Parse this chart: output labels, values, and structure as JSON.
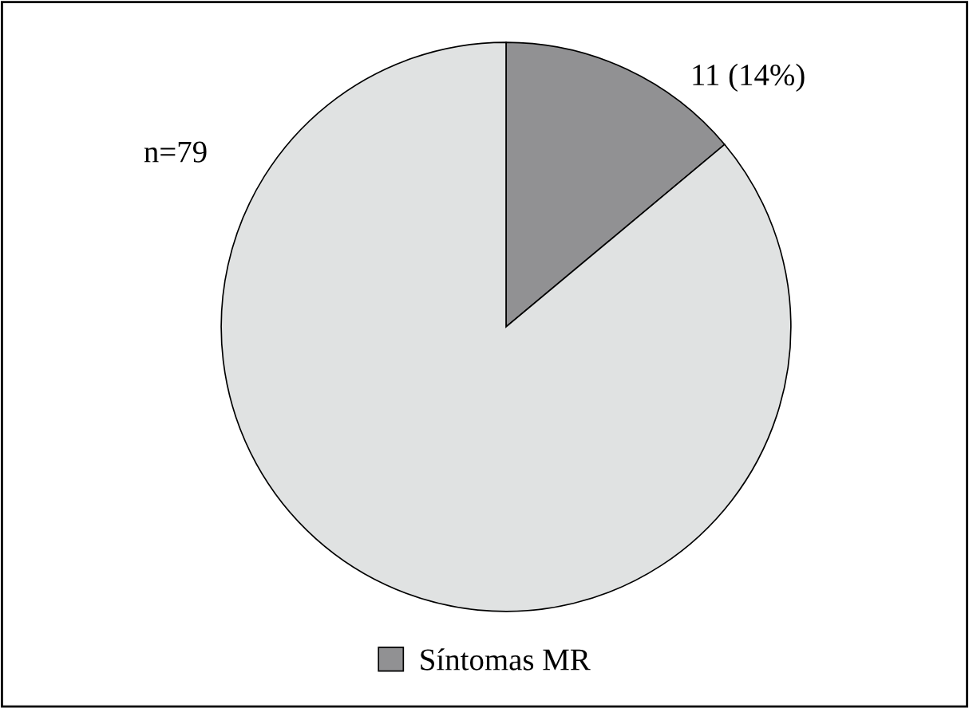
{
  "chart_data": {
    "type": "pie",
    "categories": [
      "Síntomas MR",
      null
    ],
    "values": [
      11,
      68
    ],
    "colors": [
      "#919193",
      "#e0e2e2"
    ],
    "value_labels": [
      "11 (14%)",
      null
    ],
    "annotations": [
      "n=79"
    ],
    "legend": "bottom"
  }
}
